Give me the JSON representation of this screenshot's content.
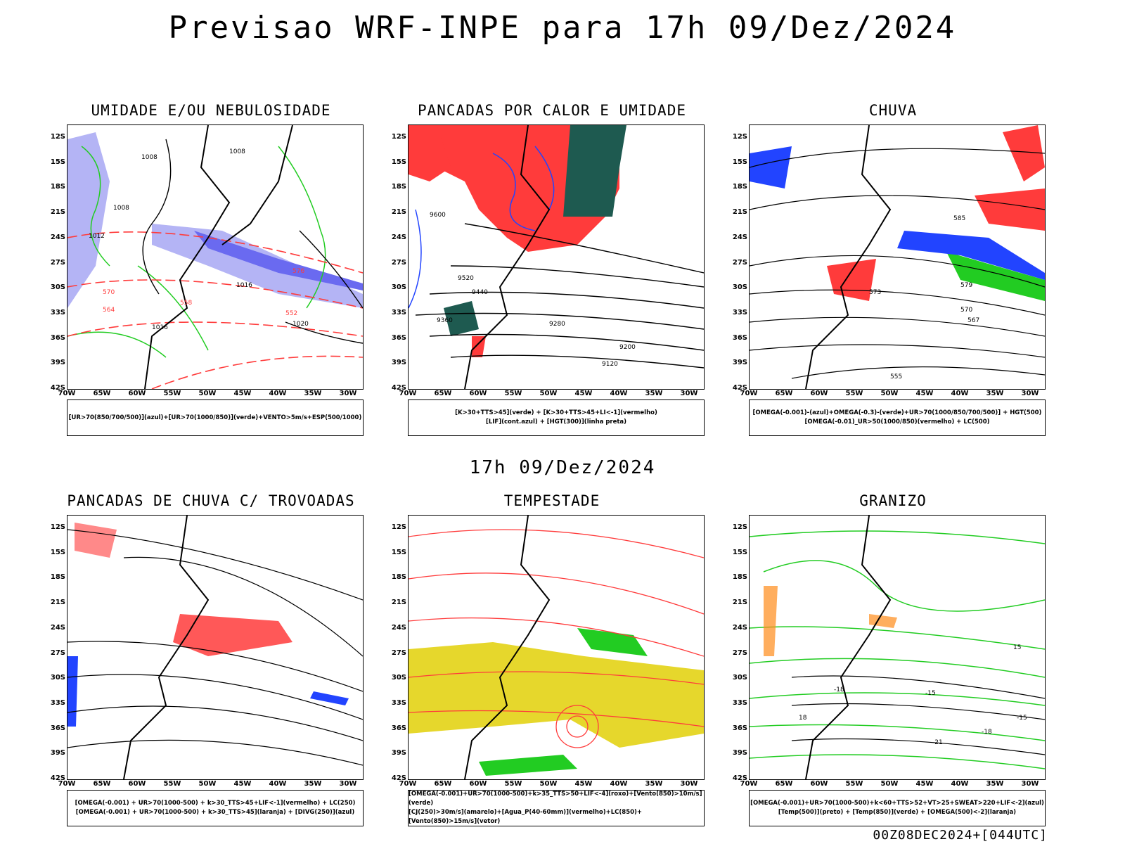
{
  "header": {
    "title": "Previsao WRF-INPE  para 17h 09/Dez/2024"
  },
  "subheader": {
    "time": "17h 09/Dez/2024"
  },
  "footer": {
    "run": "00Z08DEC2024+[044UTC]"
  },
  "axes": {
    "lat_labels": [
      "12S",
      "15S",
      "18S",
      "21S",
      "24S",
      "27S",
      "30S",
      "33S",
      "36S",
      "39S",
      "42S"
    ],
    "lon_labels": [
      "70W",
      "65W",
      "60W",
      "55W",
      "50W",
      "45W",
      "40W",
      "35W",
      "30W"
    ]
  },
  "colors": {
    "red": "#ff3b3b",
    "green": "#22cc22",
    "blue": "#2244ff",
    "lavender": "#b4b4f5",
    "darkteal": "#1e5a50",
    "yellow": "#e6d72c",
    "orange": "#ff8c1a"
  },
  "panels": [
    {
      "id": "umidade",
      "title": "UMIDADE E/OU NEBULOSIDADE",
      "legend": [
        "[UR>70(850/700/500)](azul)+[UR>70(1000/850)](verde)+VENTO>5m/s+ESP(500/1000)"
      ],
      "labels": [
        "1008",
        "1008",
        "1008",
        "1012",
        "1016",
        "1016",
        "1020",
        "576",
        "570",
        "564",
        "558",
        "552"
      ]
    },
    {
      "id": "pancadas-calor",
      "title": "PANCADAS POR CALOR E UMIDADE",
      "legend": [
        "[K>30+TTS>45](verde) + [K>30+TTS>45+LI<-1](vermelho)",
        "[LIF](cont.azul) + [HGT(300)](linha preta)"
      ],
      "labels": [
        "9600",
        "9520",
        "9440",
        "9360",
        "9280",
        "9200",
        "9120"
      ]
    },
    {
      "id": "chuva",
      "title": "CHUVA",
      "legend": [
        "[OMEGA(-0.001)-(azul)+OMEGA(-0.3)-(verde)+UR>70(1000/850/700/500)] + HGT(500)",
        "[OMEGA(-0.01)_UR>50(1000/850)(vermelho) + LC(500)"
      ],
      "labels": [
        "585",
        "579",
        "573",
        "570",
        "567",
        "555"
      ]
    },
    {
      "id": "trovoadas",
      "title": "PANCADAS DE CHUVA C/ TROVOADAS",
      "legend": [
        "[OMEGA(-0.001) + UR>70(1000-500) + k>30_TTS>45+LIF<-1](vermelho) + LC(250)",
        "[OMEGA(-0.001) + UR>70(1000-500) + k>30_TTS>45](laranja) + [DIVG(250)](azul)"
      ],
      "labels": []
    },
    {
      "id": "tempestade",
      "title": "TEMPESTADE",
      "legend": [
        "[OMEGA(-0.001)+UR>70(1000-500)+k>35_TTS>50+LIF<-4](roxo)+[Vento(850)>10m/s](verde)",
        "[CJ(250)>30m/s](amarelo)+[Agua_P(40-60mm)](vermelho)+LC(850)+[Vento(850)>15m/s](vetor)"
      ],
      "labels": []
    },
    {
      "id": "granizo",
      "title": "GRANIZO",
      "legend": [
        "[OMEGA(-0.001)+UR>70(1000-500)+k<60+TTS>52+VT>25+SWEAT>220+LIF<-2](azul)",
        "[Temp(500)](preto) + [Temp(850)](verde) + [OMEGA(500)<-2](laranja)"
      ],
      "labels": [
        "-15",
        "-18",
        "-18",
        "-21",
        "-15",
        "18",
        "15"
      ]
    }
  ]
}
